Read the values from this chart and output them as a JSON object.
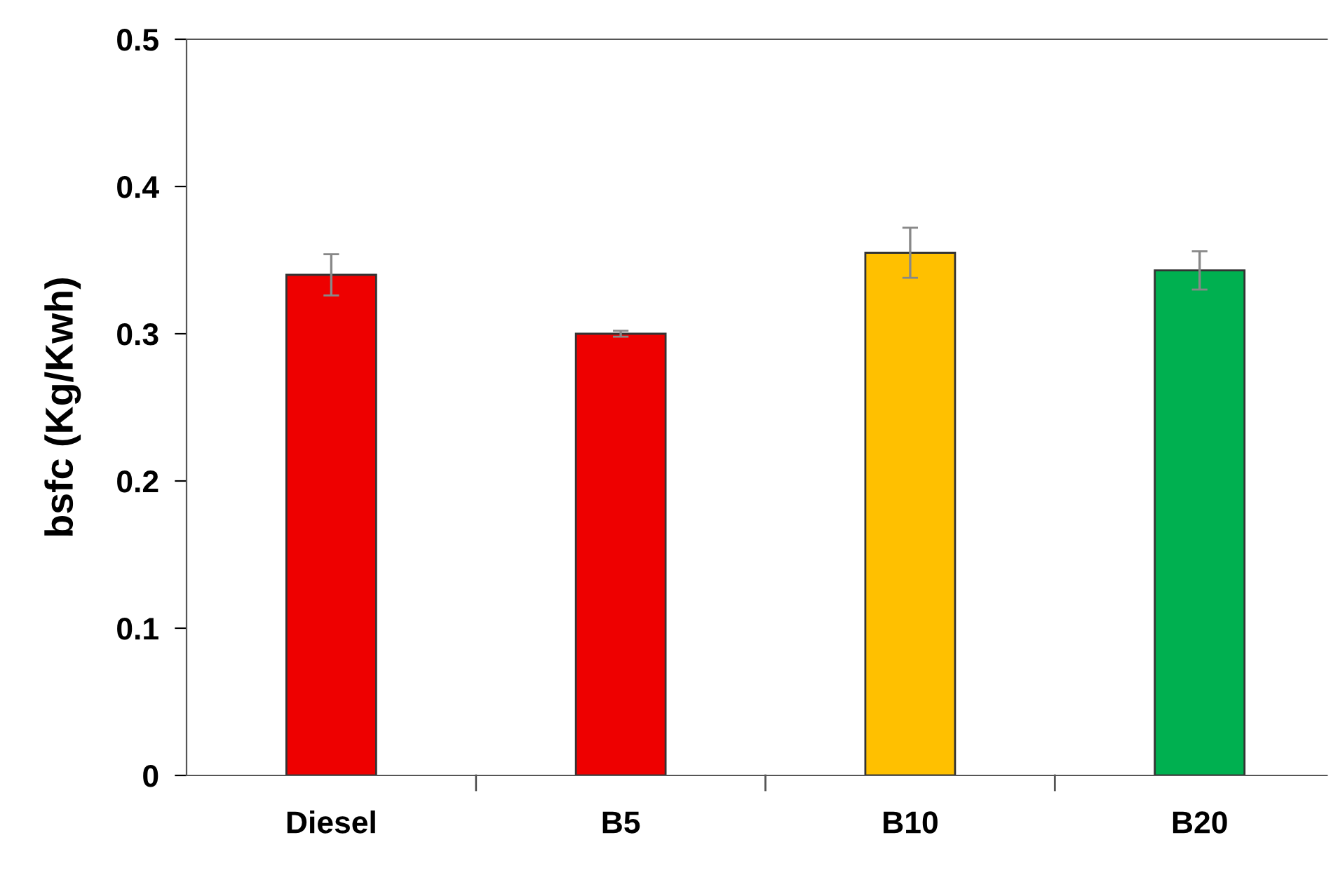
{
  "chart_data": {
    "type": "bar",
    "ylabel": "bsfc (Kg/Kwh)",
    "categories": [
      "Diesel",
      "B5",
      "B10",
      "B20"
    ],
    "values": [
      0.34,
      0.3,
      0.355,
      0.343
    ],
    "colors": [
      "#ee0000",
      "#ee0000",
      "#ffc000",
      "#00b050"
    ],
    "errors": [
      0.014,
      0.002,
      0.017,
      0.013
    ],
    "ylim": [
      0,
      0.5
    ],
    "yticks": [
      0,
      0.1,
      0.2,
      0.3,
      0.4,
      0.5
    ],
    "grid": false,
    "legend": false
  }
}
